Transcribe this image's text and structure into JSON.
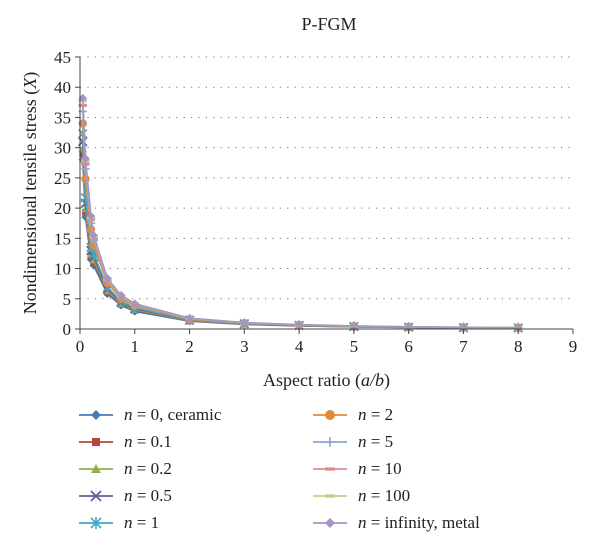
{
  "chart_data": {
    "type": "line",
    "title": "P-FGM",
    "xlabel": "Aspect ratio (a/b)",
    "ylabel": "Nondimensional tensile stress (X)",
    "xlim": [
      0,
      9
    ],
    "ylim": [
      0,
      45
    ],
    "x_ticks": [
      "0",
      "1",
      "2",
      "3",
      "4",
      "5",
      "6",
      "7",
      "8",
      "9"
    ],
    "y_ticks": [
      "0",
      "5",
      "10",
      "15",
      "20",
      "25",
      "30",
      "35",
      "40",
      "45"
    ],
    "grid": "horizontal dotted",
    "legend_position": "bottom",
    "x": [
      0.05,
      0.1,
      0.2,
      0.25,
      0.5,
      0.75,
      1,
      2,
      3,
      4,
      5,
      6,
      7,
      8
    ],
    "series": [
      {
        "name": "n = 0, ceramic",
        "color": "#4a7ab3",
        "marker": "diamond",
        "values": [
          28.0,
          18.5,
          11.5,
          10.5,
          5.8,
          3.9,
          2.9,
          1.3,
          0.75,
          0.5,
          0.35,
          0.25,
          0.2,
          0.15
        ]
      },
      {
        "name": "n = 0.1",
        "color": "#b5453f",
        "marker": "square",
        "values": [
          29.0,
          19.3,
          12.0,
          11.0,
          6.1,
          4.1,
          3.1,
          1.35,
          0.8,
          0.53,
          0.37,
          0.27,
          0.21,
          0.16
        ]
      },
      {
        "name": "n = 0.2",
        "color": "#8fb04a",
        "marker": "triangle",
        "values": [
          29.8,
          19.9,
          12.4,
          11.4,
          6.3,
          4.2,
          3.2,
          1.4,
          0.82,
          0.55,
          0.38,
          0.28,
          0.22,
          0.17
        ]
      },
      {
        "name": "n = 0.5",
        "color": "#6a5a9c",
        "marker": "x",
        "values": [
          31.0,
          20.8,
          13.0,
          11.9,
          6.6,
          4.4,
          3.35,
          1.45,
          0.85,
          0.57,
          0.4,
          0.29,
          0.23,
          0.18
        ]
      },
      {
        "name": "n = 1",
        "color": "#3fa8c4",
        "marker": "star",
        "values": [
          32.3,
          21.7,
          13.5,
          12.4,
          6.9,
          4.6,
          3.5,
          1.5,
          0.88,
          0.6,
          0.42,
          0.31,
          0.24,
          0.19
        ]
      },
      {
        "name": "n = 2",
        "color": "#e08a3c",
        "marker": "circle",
        "values": [
          34.0,
          24.8,
          16.5,
          13.8,
          7.6,
          5.0,
          3.8,
          1.6,
          0.95,
          0.65,
          0.45,
          0.33,
          0.26,
          0.2
        ]
      },
      {
        "name": "n = 5",
        "color": "#8aa8d4",
        "marker": "plus",
        "values": [
          36.0,
          26.5,
          17.5,
          14.6,
          8.0,
          5.3,
          4.0,
          1.7,
          1.0,
          0.68,
          0.47,
          0.35,
          0.27,
          0.21
        ]
      },
      {
        "name": "n = 10",
        "color": "#e08c8c",
        "marker": "dash",
        "values": [
          37.0,
          27.3,
          18.1,
          15.0,
          8.2,
          5.4,
          4.1,
          1.75,
          1.03,
          0.7,
          0.48,
          0.36,
          0.28,
          0.22
        ]
      },
      {
        "name": "n = 100",
        "color": "#b8d08c",
        "marker": "dash",
        "values": [
          37.8,
          27.9,
          18.5,
          15.3,
          8.3,
          5.5,
          4.15,
          1.78,
          1.05,
          0.71,
          0.49,
          0.37,
          0.28,
          0.22
        ]
      },
      {
        "name": "n = infinity, metal",
        "color": "#a594c4",
        "marker": "diamond",
        "values": [
          38.2,
          28.2,
          18.7,
          15.5,
          8.4,
          5.6,
          4.2,
          1.8,
          1.06,
          0.72,
          0.5,
          0.37,
          0.29,
          0.22
        ]
      }
    ]
  }
}
